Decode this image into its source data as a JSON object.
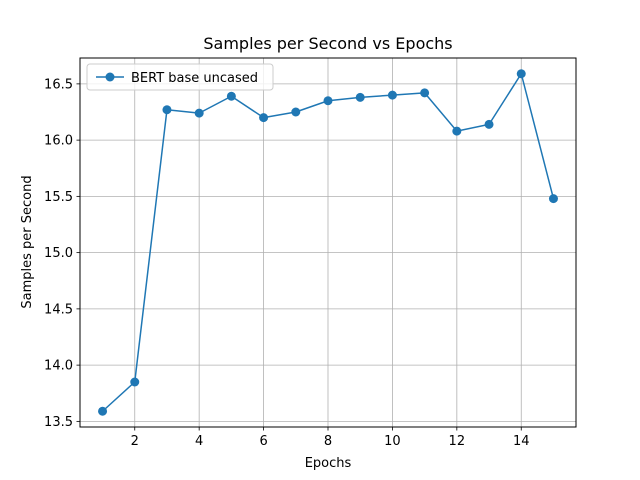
{
  "chart_data": {
    "type": "line",
    "title": "Samples per Second vs Epochs",
    "xlabel": "Epochs",
    "ylabel": "Samples per Second",
    "xlim": [
      0.3,
      15.7
    ],
    "ylim": [
      13.45,
      16.73
    ],
    "xticks": [
      2,
      4,
      6,
      8,
      10,
      12,
      14
    ],
    "yticks": [
      13.5,
      14.0,
      14.5,
      15.0,
      15.5,
      16.0,
      16.5
    ],
    "grid": true,
    "legend_position": "upper-left",
    "series": [
      {
        "name": "BERT base uncased",
        "color": "#1f77b4",
        "marker": "circle",
        "x": [
          1,
          2,
          3,
          4,
          5,
          6,
          7,
          8,
          9,
          10,
          11,
          12,
          13,
          14,
          15
        ],
        "y": [
          13.59,
          13.85,
          16.27,
          16.24,
          16.39,
          16.2,
          16.25,
          16.35,
          16.38,
          16.4,
          16.42,
          16.08,
          16.14,
          16.59,
          15.48
        ]
      }
    ]
  }
}
